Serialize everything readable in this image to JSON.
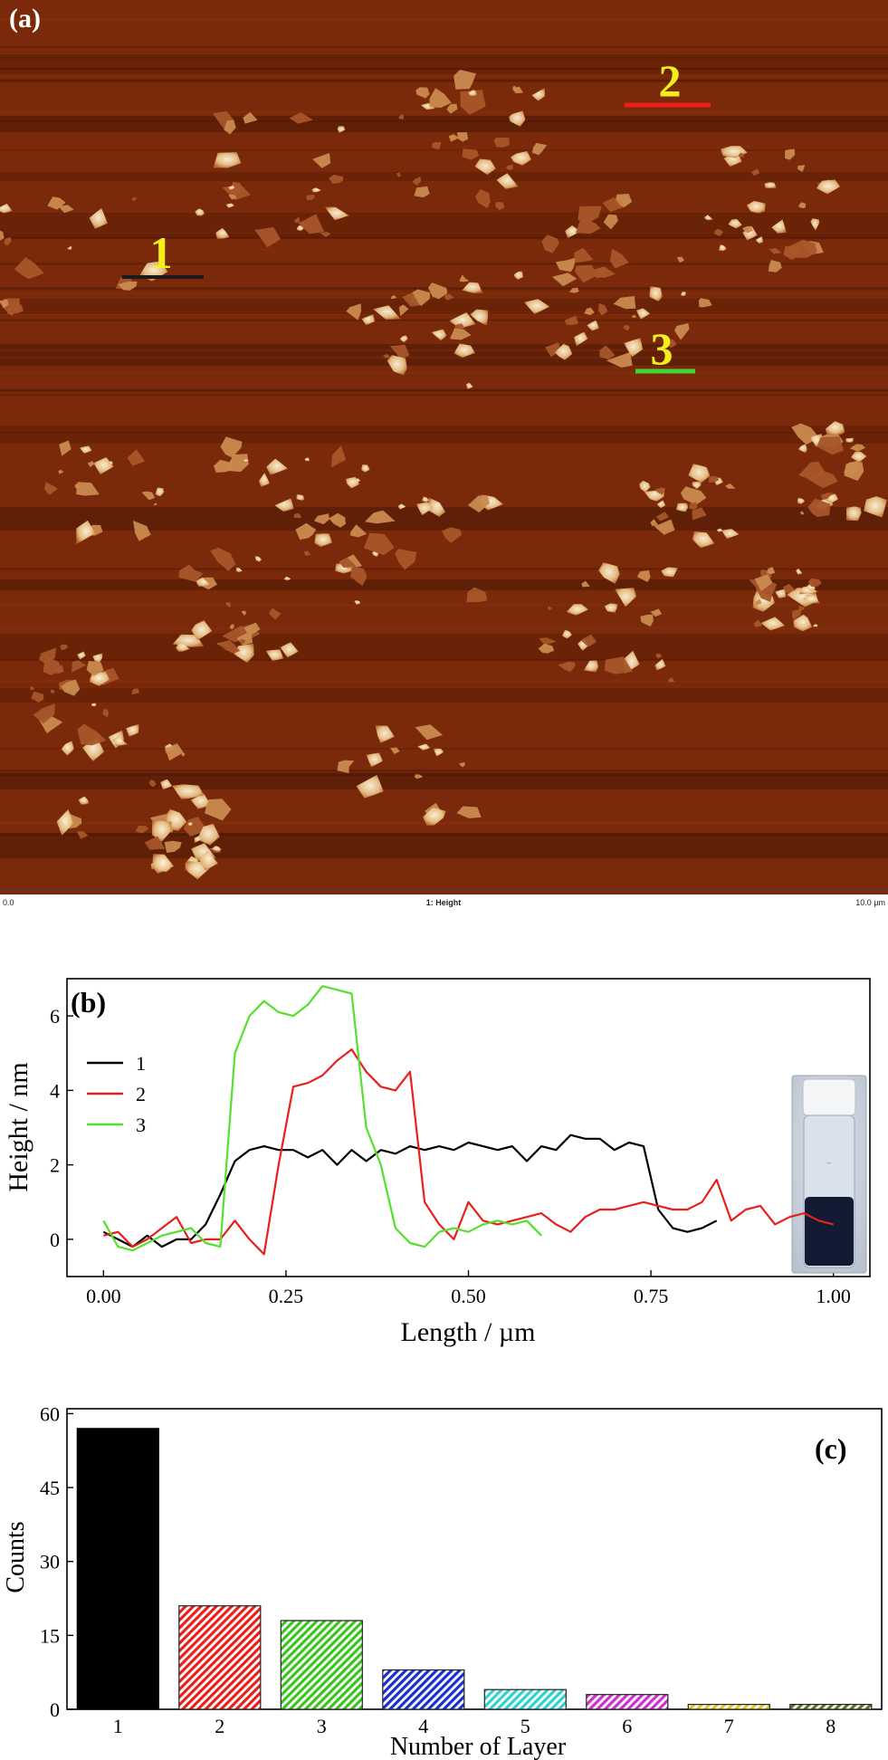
{
  "panels": {
    "a": {
      "label": "(a)",
      "scale_bar": {
        "start": "0.0",
        "title": "1: Height",
        "end": "10.0 µm"
      },
      "line_markers": [
        {
          "label": "1",
          "color": "#1a1a1a"
        },
        {
          "label": "2",
          "color": "#e8201b"
        },
        {
          "label": "3",
          "color": "#3fd63a"
        }
      ],
      "colors": {
        "substrate": "#7a2a0a",
        "flake": "#f3dcb0",
        "marker_text": "#f5ee1a"
      }
    },
    "b": {
      "label": "(b)"
    },
    "c": {
      "label": "(c)"
    }
  },
  "chart_data": [
    {
      "type": "line",
      "panel": "b",
      "xlabel": "Length / µm",
      "ylabel": "Height / nm",
      "xlim": [
        -0.05,
        1.05
      ],
      "ylim": [
        -1.0,
        7.0
      ],
      "xticks": [
        "0.00",
        "0.25",
        "0.50",
        "0.75",
        "1.00"
      ],
      "yticks": [
        "0",
        "2",
        "4",
        "6"
      ],
      "legend_position": "upper-left",
      "inset": "vial photo (right)",
      "series": [
        {
          "name": "1",
          "color": "#000000",
          "x": [
            0.0,
            0.02,
            0.04,
            0.06,
            0.08,
            0.1,
            0.12,
            0.14,
            0.16,
            0.18,
            0.2,
            0.22,
            0.24,
            0.26,
            0.28,
            0.3,
            0.32,
            0.34,
            0.36,
            0.38,
            0.4,
            0.42,
            0.44,
            0.46,
            0.48,
            0.5,
            0.52,
            0.54,
            0.56,
            0.58,
            0.6,
            0.62,
            0.64,
            0.66,
            0.68,
            0.7,
            0.72,
            0.74,
            0.76,
            0.78,
            0.8,
            0.82,
            0.84
          ],
          "y": [
            0.2,
            0.0,
            -0.2,
            0.1,
            -0.2,
            0.0,
            0.0,
            0.4,
            1.2,
            2.1,
            2.4,
            2.5,
            2.4,
            2.4,
            2.2,
            2.4,
            2.0,
            2.4,
            2.1,
            2.4,
            2.3,
            2.5,
            2.4,
            2.5,
            2.4,
            2.6,
            2.5,
            2.4,
            2.5,
            2.1,
            2.5,
            2.4,
            2.8,
            2.7,
            2.7,
            2.4,
            2.6,
            2.5,
            0.8,
            0.3,
            0.2,
            0.3,
            0.5
          ]
        },
        {
          "name": "2",
          "color": "#e8201b",
          "x": [
            0.0,
            0.02,
            0.04,
            0.06,
            0.08,
            0.1,
            0.12,
            0.14,
            0.16,
            0.18,
            0.2,
            0.22,
            0.24,
            0.26,
            0.28,
            0.3,
            0.32,
            0.34,
            0.36,
            0.38,
            0.4,
            0.42,
            0.44,
            0.46,
            0.48,
            0.5,
            0.52,
            0.54,
            0.56,
            0.58,
            0.6,
            0.62,
            0.64,
            0.66,
            0.68,
            0.7,
            0.72,
            0.74,
            0.76,
            0.78,
            0.8,
            0.82,
            0.84,
            0.86,
            0.88,
            0.9,
            0.92,
            0.94,
            0.96,
            0.98,
            1.0
          ],
          "y": [
            0.1,
            0.2,
            -0.2,
            0.0,
            0.3,
            0.6,
            -0.1,
            0.0,
            0.0,
            0.5,
            0.0,
            -0.4,
            2.0,
            4.1,
            4.2,
            4.4,
            4.8,
            5.1,
            4.5,
            4.1,
            4.0,
            4.5,
            1.0,
            0.4,
            0.0,
            1.0,
            0.5,
            0.4,
            0.5,
            0.6,
            0.7,
            0.4,
            0.2,
            0.6,
            0.8,
            0.8,
            0.9,
            1.0,
            0.9,
            0.8,
            0.8,
            1.0,
            1.6,
            0.5,
            0.8,
            0.9,
            0.4,
            0.6,
            0.7,
            0.5,
            0.4
          ]
        },
        {
          "name": "3",
          "color": "#55e02d",
          "x": [
            0.0,
            0.02,
            0.04,
            0.06,
            0.08,
            0.1,
            0.12,
            0.14,
            0.16,
            0.18,
            0.2,
            0.22,
            0.24,
            0.26,
            0.28,
            0.3,
            0.32,
            0.34,
            0.36,
            0.38,
            0.4,
            0.42,
            0.44,
            0.46,
            0.48,
            0.5,
            0.52,
            0.54,
            0.56,
            0.58,
            0.6
          ],
          "y": [
            0.5,
            -0.2,
            -0.3,
            -0.1,
            0.1,
            0.2,
            0.3,
            -0.1,
            -0.2,
            5.0,
            6.0,
            6.4,
            6.1,
            6.0,
            6.3,
            6.8,
            6.7,
            6.6,
            3.0,
            2.0,
            0.3,
            -0.1,
            -0.2,
            0.2,
            0.3,
            0.2,
            0.4,
            0.5,
            0.4,
            0.5,
            0.1
          ]
        }
      ]
    },
    {
      "type": "bar",
      "panel": "c",
      "xlabel": "Number of Layer",
      "ylabel": "Counts",
      "ylim": [
        0,
        61
      ],
      "yticks": [
        "0",
        "15",
        "30",
        "45",
        "60"
      ],
      "categories": [
        "1",
        "2",
        "3",
        "4",
        "5",
        "6",
        "7",
        "8"
      ],
      "values": [
        57,
        21,
        18,
        8,
        4,
        3,
        1,
        1
      ],
      "colors": [
        "#000000",
        "#e8201b",
        "#3cc41f",
        "#1a2fd0",
        "#2fd1d1",
        "#d12fcf",
        "#e3cc14",
        "#5f7a25"
      ],
      "hatched": true
    }
  ]
}
